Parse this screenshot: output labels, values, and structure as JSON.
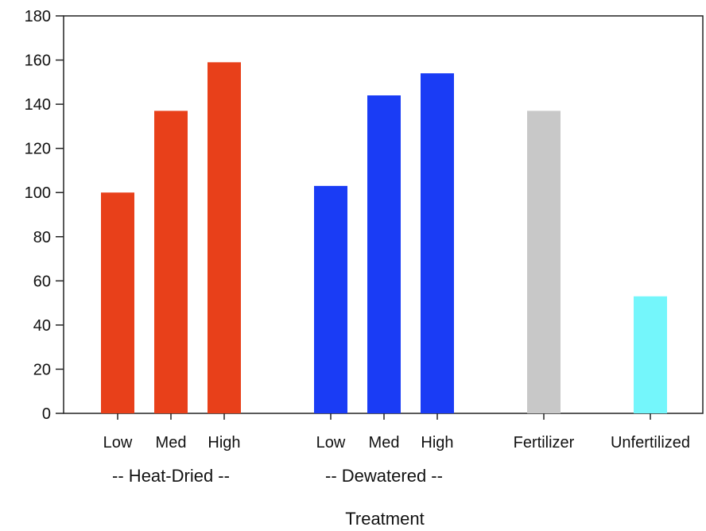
{
  "chart_data": {
    "type": "bar",
    "title": "",
    "xlabel": "Treatment",
    "ylabel": "",
    "ylim": [
      0,
      180
    ],
    "yticks": [
      0,
      20,
      40,
      60,
      80,
      100,
      120,
      140,
      160,
      180
    ],
    "grid": false,
    "legend": "none",
    "categories": [
      "Low",
      "Med",
      "High",
      "Low",
      "Med",
      "High",
      "Fertilizer",
      "Unfertilized"
    ],
    "values": [
      100,
      137,
      159,
      103,
      144,
      154,
      137,
      53
    ],
    "groups": [
      {
        "label": "-- Heat-Dried --",
        "members": [
          0,
          1,
          2
        ]
      },
      {
        "label": "-- Dewatered --",
        "members": [
          3,
          4,
          5
        ]
      }
    ],
    "colors": [
      "#e8401a",
      "#e8401a",
      "#e8401a",
      "#1a3cf5",
      "#1a3cf5",
      "#1a3cf5",
      "#c8c8c8",
      "#74f6fb"
    ]
  }
}
